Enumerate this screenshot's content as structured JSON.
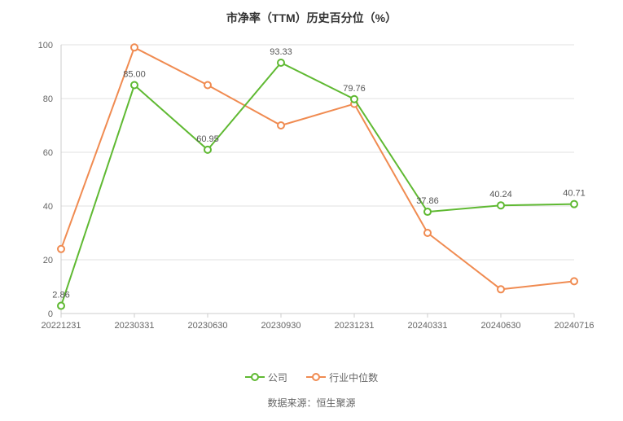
{
  "chart": {
    "type": "line",
    "title": "市净率（TTM）历史百分位（%）",
    "title_fontsize": 14,
    "title_fontweight": "bold",
    "title_color": "#333333",
    "background_color": "#ffffff",
    "grid_color": "#e0e0e0",
    "axis_color": "#cccccc",
    "tick_label_color": "#666666",
    "tick_label_fontsize": 11,
    "data_label_fontsize": 11,
    "data_label_color": "#555555",
    "ylim": [
      0,
      100
    ],
    "ytick_step": 20,
    "yticks": [
      0,
      20,
      40,
      60,
      80,
      100
    ],
    "categories": [
      "20221231",
      "20230331",
      "20230630",
      "20230930",
      "20231231",
      "20240331",
      "20240630",
      "20240716"
    ],
    "series": {
      "company": {
        "label": "公司",
        "color": "#5fb932",
        "line_width": 2,
        "marker_style": "hollow-circle",
        "marker_radius": 4,
        "values": [
          2.86,
          85.0,
          60.95,
          93.33,
          79.76,
          37.86,
          40.24,
          40.71
        ],
        "data_labels": [
          "2.86",
          "85.00",
          "60.95",
          "93.33",
          "79.76",
          "37.86",
          "40.24",
          "40.71"
        ],
        "show_labels": true
      },
      "industry_median": {
        "label": "行业中位数",
        "color": "#f08b51",
        "line_width": 2,
        "marker_style": "hollow-circle",
        "marker_radius": 4,
        "values": [
          24,
          99,
          85,
          70,
          78,
          30,
          9,
          12
        ],
        "show_labels": false
      }
    },
    "legend": {
      "position": "bottom",
      "fontsize": 12,
      "color": "#666666"
    },
    "source_prefix": "数据来源：",
    "source_text": "恒生聚源",
    "source_fontsize": 12,
    "source_color": "#666666"
  }
}
